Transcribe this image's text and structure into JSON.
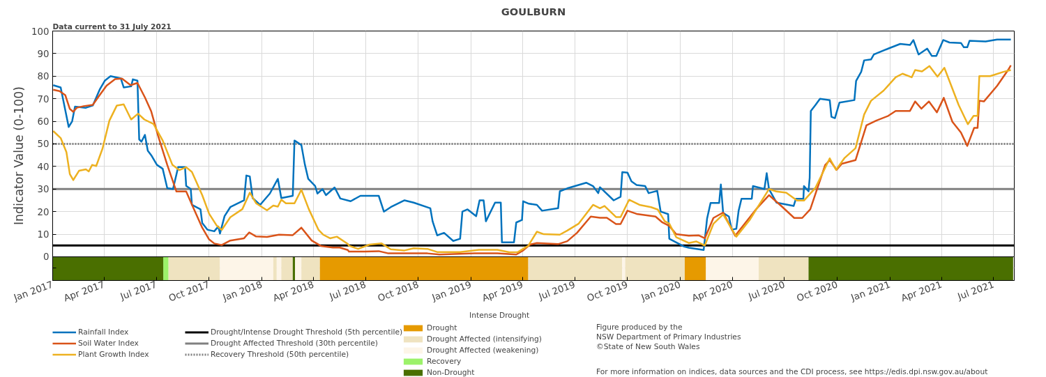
{
  "chart_data": {
    "type": "line",
    "title": "GOULBURN",
    "ylabel": "Indicator Value (0-100)",
    "annotations": [
      "Data current to 31 July 2021",
      "Intense Drought",
      "Figure produced by the",
      "NSW Department of Primary Industries",
      "©State of New South Wales",
      "For more information on indices, data sources and the CDI process, see https://edis.dpi.nsw.gov.au/about"
    ],
    "xlim": [
      "2017-01-01",
      "2021-08-06"
    ],
    "xticks": [
      {
        "value": "2017-01-01",
        "label": "Jan 2017"
      },
      {
        "value": "2017-04-01",
        "label": "Apr 2017"
      },
      {
        "value": "2017-07-01",
        "label": "Jul 2017"
      },
      {
        "value": "2017-10-01",
        "label": "Oct 2017"
      },
      {
        "value": "2018-01-01",
        "label": "Jan 2018"
      },
      {
        "value": "2018-04-01",
        "label": "Apr 2018"
      },
      {
        "value": "2018-07-01",
        "label": "Jul 2018"
      },
      {
        "value": "2018-10-01",
        "label": "Oct 2018"
      },
      {
        "value": "2019-01-01",
        "label": "Jan 2019"
      },
      {
        "value": "2019-04-01",
        "label": "Apr 2019"
      },
      {
        "value": "2019-07-01",
        "label": "Jul 2019"
      },
      {
        "value": "2019-10-01",
        "label": "Oct 2019"
      },
      {
        "value": "2020-01-01",
        "label": "Jan 2020"
      },
      {
        "value": "2020-04-01",
        "label": "Apr 2020"
      },
      {
        "value": "2020-07-01",
        "label": "Jul 2020"
      },
      {
        "value": "2020-10-01",
        "label": "Oct 2020"
      },
      {
        "value": "2021-01-01",
        "label": "Jan 2021"
      },
      {
        "value": "2021-04-01",
        "label": "Apr 2021"
      },
      {
        "value": "2021-07-01",
        "label": "Jul 2021"
      }
    ],
    "ylim": [
      -10.5,
      100
    ],
    "yticks": [
      {
        "value": -5,
        "label": null
      },
      0,
      10,
      20,
      30,
      40,
      50,
      60,
      70,
      80,
      90,
      100
    ],
    "grid": true,
    "legend": "bottom",
    "series": [
      {
        "name": "Rainfall Index",
        "color": "#0072bd",
        "x": [
          "2017-01-02",
          "2017-01-15",
          "2017-01-19",
          "2017-01-29",
          "2017-02-04",
          "2017-02-09",
          "2017-02-28",
          "2017-03-12",
          "2017-03-24",
          "2017-04-02",
          "2017-04-12",
          "2017-04-30",
          "2017-05-05",
          "2017-05-18",
          "2017-05-21",
          "2017-05-29",
          "2017-06-01",
          "2017-06-05",
          "2017-06-11",
          "2017-06-16",
          "2017-06-22",
          "2017-07-02",
          "2017-07-12",
          "2017-07-20",
          "2017-07-30",
          "2017-08-08",
          "2017-08-20",
          "2017-08-22",
          "2017-08-30",
          "2017-09-01",
          "2017-09-16",
          "2017-09-19",
          "2017-09-28",
          "2017-10-10",
          "2017-10-17",
          "2017-10-20",
          "2017-10-28",
          "2017-11-07",
          "2017-12-01",
          "2017-12-05",
          "2017-12-11",
          "2017-12-16",
          "2017-12-29",
          "2018-01-15",
          "2018-01-29",
          "2018-02-04",
          "2018-02-24",
          "2018-02-27",
          "2018-03-11",
          "2018-03-17",
          "2018-03-23",
          "2018-04-04",
          "2018-04-08",
          "2018-04-17",
          "2018-04-23",
          "2018-05-08",
          "2018-05-18",
          "2018-06-05",
          "2018-06-22",
          "2018-07-24",
          "2018-08-02",
          "2018-08-14",
          "2018-09-07",
          "2018-09-23",
          "2018-10-22",
          "2018-10-26",
          "2018-11-03",
          "2018-11-15",
          "2018-12-01",
          "2018-12-13",
          "2018-12-17",
          "2018-12-26",
          "2019-01-10",
          "2019-01-16",
          "2019-01-23",
          "2019-01-27",
          "2019-02-12",
          "2019-02-22",
          "2019-02-24",
          "2019-03-17",
          "2019-03-21",
          "2019-03-31",
          "2019-04-02",
          "2019-04-12",
          "2019-04-26",
          "2019-05-05",
          "2019-06-02",
          "2019-06-05",
          "2019-06-18",
          "2019-07-21",
          "2019-08-02",
          "2019-08-11",
          "2019-08-14",
          "2019-09-07",
          "2019-09-19",
          "2019-09-22",
          "2019-10-01",
          "2019-10-08",
          "2019-10-17",
          "2019-11-01",
          "2019-11-07",
          "2019-11-22",
          "2019-11-28",
          "2019-12-11",
          "2019-12-13",
          "2020-01-08",
          "2020-01-16",
          "2020-02-11",
          "2020-02-17",
          "2020-02-23",
          "2020-03-09",
          "2020-03-12",
          "2020-03-16",
          "2020-03-26",
          "2020-03-31",
          "2020-04-08",
          "2020-04-12",
          "2020-04-17",
          "2020-05-05",
          "2020-05-07",
          "2020-05-27",
          "2020-05-31",
          "2020-06-04",
          "2020-06-17",
          "2020-07-17",
          "2020-07-21",
          "2020-08-03",
          "2020-08-04",
          "2020-08-12",
          "2020-08-14",
          "2020-08-16",
          "2020-08-24",
          "2020-09-01",
          "2020-09-18",
          "2020-09-21",
          "2020-09-27",
          "2020-10-05",
          "2020-10-31",
          "2020-11-03",
          "2020-11-12",
          "2020-11-17",
          "2020-11-29",
          "2020-12-04",
          "2020-12-29",
          "2021-01-19",
          "2021-02-05",
          "2021-02-11",
          "2021-02-20",
          "2021-03-07",
          "2021-03-15",
          "2021-03-23",
          "2021-04-04",
          "2021-04-15",
          "2021-05-05",
          "2021-05-10",
          "2021-05-16",
          "2021-05-20",
          "2021-06-17",
          "2021-07-07",
          "2021-07-31"
        ],
        "values": [
          76,
          75,
          70,
          57.5,
          60,
          66.5,
          66,
          67,
          74,
          78,
          80,
          79,
          75,
          75.5,
          78.6,
          78,
          52,
          51,
          54,
          47,
          45,
          40.7,
          39,
          30.4,
          30,
          39.7,
          39.7,
          31.4,
          30,
          23,
          21,
          15,
          12,
          11.3,
          13.4,
          10.3,
          18,
          22,
          25,
          36,
          35.6,
          26,
          23,
          28,
          34.5,
          26,
          27,
          51.5,
          49.5,
          41,
          34.5,
          31.4,
          28,
          30,
          27.3,
          30.7,
          25.8,
          24.6,
          27,
          27,
          20,
          22,
          25,
          24,
          21.5,
          15.7,
          9.5,
          10.6,
          7,
          8,
          20,
          21,
          18,
          25,
          25,
          15.7,
          24,
          24,
          6.4,
          6.4,
          15.2,
          16.3,
          24.6,
          23.5,
          23,
          20.4,
          21.5,
          29,
          30.3,
          32.8,
          31.3,
          28.2,
          30.8,
          25,
          26.6,
          37.5,
          37.3,
          33.4,
          31.8,
          31.3,
          28.2,
          29.2,
          20,
          18.9,
          8,
          4.5,
          4,
          3,
          17,
          23.8,
          23.8,
          32,
          19.4,
          17.8,
          12,
          12.4,
          20.4,
          25.7,
          25.7,
          31.3,
          30,
          37,
          30,
          24,
          22.5,
          25.7,
          25.7,
          31.3,
          29,
          35,
          64.6,
          67.2,
          70,
          69.4,
          62,
          61.4,
          68.3,
          69.4,
          77.9,
          82,
          87,
          87.4,
          89.6,
          92.2,
          94.3,
          93.8,
          96,
          89.6,
          92.2,
          89,
          89,
          96,
          94.9,
          94.7,
          92.8,
          92.8,
          95.7,
          95.4,
          96.2,
          96.2
        ]
      },
      {
        "name": "Soil Water Index",
        "color": "#d95319",
        "x": [
          "2017-01-02",
          "2017-01-13",
          "2017-01-23",
          "2017-01-31",
          "2017-02-06",
          "2017-02-12",
          "2017-02-24",
          "2017-03-12",
          "2017-03-24",
          "2017-04-05",
          "2017-04-20",
          "2017-05-02",
          "2017-05-17",
          "2017-05-29",
          "2017-06-11",
          "2017-06-22",
          "2017-07-04",
          "2017-07-20",
          "2017-08-05",
          "2017-08-22",
          "2017-09-03",
          "2017-09-19",
          "2017-10-01",
          "2017-10-10",
          "2017-10-23",
          "2017-11-07",
          "2017-12-01",
          "2017-12-10",
          "2017-12-22",
          "2018-01-10",
          "2018-01-31",
          "2018-02-24",
          "2018-03-11",
          "2018-03-29",
          "2018-04-14",
          "2018-05-05",
          "2018-05-17",
          "2018-05-31",
          "2018-06-02",
          "2018-06-30",
          "2018-07-24",
          "2018-08-10",
          "2018-10-17",
          "2018-11-07",
          "2019-01-07",
          "2019-02-16",
          "2019-03-21",
          "2019-04-02",
          "2019-04-14",
          "2019-04-26",
          "2019-06-02",
          "2019-06-18",
          "2019-07-05",
          "2019-07-29",
          "2019-08-14",
          "2019-08-26",
          "2019-09-11",
          "2019-09-19",
          "2019-10-01",
          "2019-10-17",
          "2019-11-19",
          "2019-12-01",
          "2019-12-13",
          "2019-12-25",
          "2020-01-16",
          "2020-02-02",
          "2020-02-13",
          "2020-02-28",
          "2020-03-16",
          "2020-04-06",
          "2020-04-19",
          "2020-05-14",
          "2020-06-04",
          "2020-06-25",
          "2020-07-18",
          "2020-08-01",
          "2020-08-15",
          "2020-09-10",
          "2020-09-18",
          "2020-09-30",
          "2020-10-09",
          "2020-11-02",
          "2020-11-21",
          "2020-12-08",
          "2020-12-29",
          "2021-01-11",
          "2021-02-05",
          "2021-02-14",
          "2021-02-25",
          "2021-03-10",
          "2021-03-24",
          "2021-04-05",
          "2021-04-20",
          "2021-05-05",
          "2021-05-16",
          "2021-05-28",
          "2021-06-03",
          "2021-06-06",
          "2021-06-14",
          "2021-07-07",
          "2021-07-27",
          "2021-07-31"
        ],
        "values": [
          74,
          73.4,
          71.6,
          65.5,
          64.2,
          66,
          66.7,
          67.3,
          71.6,
          75.8,
          78.7,
          78.9,
          76,
          77,
          70.6,
          64.4,
          53.6,
          40.7,
          28.9,
          28.9,
          22,
          12.9,
          7.7,
          5.9,
          5.2,
          7.2,
          8.2,
          10.8,
          9,
          8.8,
          9.8,
          9.6,
          12.9,
          7.2,
          4.8,
          4.1,
          4.1,
          3,
          2.3,
          2.3,
          2.5,
          1.5,
          1.5,
          1,
          1.5,
          1.5,
          1,
          2.8,
          5.4,
          6.1,
          5.6,
          6.9,
          10.6,
          17.8,
          17.3,
          17.3,
          14.5,
          14.5,
          20.4,
          19,
          17.8,
          15.2,
          13.7,
          10,
          9.3,
          9.5,
          8.2,
          17.2,
          19.6,
          9.3,
          13.5,
          21.5,
          27.3,
          22.6,
          17.2,
          17.2,
          21,
          40.6,
          42.8,
          38.5,
          41.2,
          42.8,
          58.2,
          60.3,
          62.4,
          64.6,
          64.6,
          68.8,
          65.6,
          68.8,
          64,
          70.4,
          59.8,
          55,
          49.1,
          57.1,
          57.1,
          69.1,
          68.8,
          75.7,
          83,
          84.8
        ]
      },
      {
        "name": "Plant Growth Index",
        "color": "#edb120",
        "x": [
          "2017-01-02",
          "2017-01-15",
          "2017-01-25",
          "2017-01-31",
          "2017-02-06",
          "2017-02-16",
          "2017-02-28",
          "2017-03-05",
          "2017-03-11",
          "2017-03-18",
          "2017-03-29",
          "2017-04-10",
          "2017-04-23",
          "2017-05-05",
          "2017-05-18",
          "2017-05-30",
          "2017-06-10",
          "2017-06-26",
          "2017-07-12",
          "2017-07-29",
          "2017-08-10",
          "2017-08-22",
          "2017-09-01",
          "2017-09-19",
          "2017-10-01",
          "2017-10-14",
          "2017-10-23",
          "2017-11-07",
          "2017-11-28",
          "2017-12-11",
          "2017-12-22",
          "2018-01-10",
          "2018-01-21",
          "2018-01-29",
          "2018-02-04",
          "2018-02-12",
          "2018-02-27",
          "2018-03-11",
          "2018-03-24",
          "2018-04-10",
          "2018-04-18",
          "2018-04-30",
          "2018-05-12",
          "2018-05-31",
          "2018-06-02",
          "2018-06-18",
          "2018-07-08",
          "2018-07-29",
          "2018-08-14",
          "2018-09-07",
          "2018-09-23",
          "2018-10-17",
          "2018-11-03",
          "2018-12-13",
          "2019-01-15",
          "2019-02-16",
          "2019-03-09",
          "2019-03-24",
          "2019-04-11",
          "2019-04-26",
          "2019-05-08",
          "2019-06-05",
          "2019-06-18",
          "2019-07-08",
          "2019-08-02",
          "2019-08-14",
          "2019-08-22",
          "2019-09-11",
          "2019-09-19",
          "2019-10-04",
          "2019-10-22",
          "2019-11-11",
          "2019-11-23",
          "2019-12-05",
          "2019-12-13",
          "2019-12-25",
          "2020-01-16",
          "2020-01-29",
          "2020-02-13",
          "2020-02-28",
          "2020-03-16",
          "2020-04-08",
          "2020-05-01",
          "2020-05-22",
          "2020-06-04",
          "2020-06-17",
          "2020-07-04",
          "2020-07-23",
          "2020-08-04",
          "2020-08-24",
          "2020-09-18",
          "2020-09-29",
          "2020-10-14",
          "2020-11-02",
          "2020-11-17",
          "2020-11-29",
          "2020-12-21",
          "2021-01-11",
          "2021-01-23",
          "2021-02-08",
          "2021-02-14",
          "2021-02-26",
          "2021-03-11",
          "2021-03-25",
          "2021-04-06",
          "2021-05-01",
          "2021-05-17",
          "2021-05-27",
          "2021-06-03",
          "2021-06-06",
          "2021-06-25",
          "2021-07-18",
          "2021-07-31"
        ],
        "values": [
          55.7,
          52.6,
          46.4,
          36.6,
          34,
          38.1,
          38.7,
          37.8,
          40.7,
          40.2,
          47.9,
          60.3,
          67,
          67.5,
          60.8,
          63.4,
          60.8,
          58.8,
          51.5,
          40.7,
          38.4,
          39.7,
          37.6,
          27.3,
          19.1,
          13.9,
          11.9,
          17.5,
          21.1,
          28.4,
          23.7,
          20.6,
          22.7,
          22.2,
          25.3,
          23.7,
          23.7,
          29.7,
          21.1,
          11.9,
          9.8,
          8.2,
          8.9,
          5.7,
          4.9,
          3.5,
          5.4,
          5.9,
          3.3,
          2.8,
          3.8,
          3.5,
          2.1,
          2.1,
          3.1,
          3.1,
          2,
          2.1,
          4.9,
          11.1,
          10,
          9.8,
          11.6,
          14.7,
          23,
          21.5,
          22.5,
          17.6,
          17.6,
          25.3,
          23,
          22,
          20.9,
          15.8,
          14.7,
          8.7,
          6.1,
          6.8,
          5,
          14.6,
          18.8,
          8.9,
          16.2,
          24.7,
          30,
          28.9,
          28.4,
          24.9,
          24.9,
          30.5,
          43.6,
          38.5,
          43.8,
          48.1,
          63,
          69.1,
          73.6,
          79.5,
          81.1,
          79.5,
          82.7,
          82.1,
          84.5,
          79.8,
          83.7,
          67.2,
          58.7,
          62.4,
          62.4,
          80,
          80,
          81.9,
          82.7
        ]
      }
    ],
    "ref_lines": [
      {
        "axis": "y",
        "value": 5,
        "label": "Drought/Intense Drought Threshold (5th percentile)",
        "color": "#000000",
        "line_style": "solid"
      },
      {
        "axis": "y",
        "value": 30,
        "label": "Drought Affected Threshold (30th percentile)",
        "color": "#808080",
        "line_style": "solid"
      },
      {
        "axis": "y",
        "value": 50,
        "label": "Recovery Threshold (50th percentile)",
        "color": "#808080",
        "line_style": "dotted"
      }
    ],
    "bands": [
      {
        "axis": "x",
        "from": "2018-04-12",
        "to": "2019-04-11",
        "label": "Drought",
        "color": "#e69a00"
      },
      {
        "axis": "x",
        "from": "2017-07-22",
        "to": "2017-10-20",
        "label": "Drought Affected (intensifying)",
        "color": "#efe3c0"
      },
      {
        "axis": "x",
        "from": "2017-10-20",
        "to": "2018-01-21",
        "label": "Drought Affected (weakening)",
        "color": "#fdf5e8"
      },
      {
        "axis": "x",
        "from": "2017-07-13",
        "to": "2017-07-22",
        "label": "Recovery",
        "color": "#9cf26a"
      },
      {
        "axis": "x",
        "from": "2017-01-01",
        "to": "2017-07-13",
        "label": "Non-Drought",
        "color": "#4a6f00"
      },
      {
        "axis": "x",
        "from": "2018-01-21",
        "to": "2018-01-27",
        "color": "#efe3c0"
      },
      {
        "axis": "x",
        "from": "2018-01-27",
        "to": "2018-02-04",
        "color": "#fdf5e8"
      },
      {
        "axis": "x",
        "from": "2018-02-04",
        "to": "2018-02-24",
        "color": "#efe3c0"
      },
      {
        "axis": "x",
        "from": "2018-02-24",
        "to": "2018-02-28",
        "color": "#4a6f00"
      },
      {
        "axis": "x",
        "from": "2018-02-28",
        "to": "2018-03-11",
        "color": "#fdf5e8"
      },
      {
        "axis": "x",
        "from": "2018-03-11",
        "to": "2018-04-12",
        "color": "#efe3c0"
      },
      {
        "axis": "x",
        "from": "2019-04-11",
        "to": "2019-09-22",
        "color": "#efe3c0"
      },
      {
        "axis": "x",
        "from": "2019-09-22",
        "to": "2019-09-27",
        "color": "#fdf5e8"
      },
      {
        "axis": "x",
        "from": "2019-09-27",
        "to": "2020-01-09",
        "color": "#efe3c0"
      },
      {
        "axis": "x",
        "from": "2020-01-09",
        "to": "2020-02-15",
        "color": "#e69a00"
      },
      {
        "axis": "x",
        "from": "2020-02-15",
        "to": "2020-05-17",
        "color": "#fdf5e8"
      },
      {
        "axis": "x",
        "from": "2020-05-17",
        "to": "2020-08-12",
        "color": "#efe3c0"
      },
      {
        "axis": "x",
        "from": "2020-08-12",
        "to": "2021-08-04",
        "color": "#4a6f00"
      }
    ]
  }
}
